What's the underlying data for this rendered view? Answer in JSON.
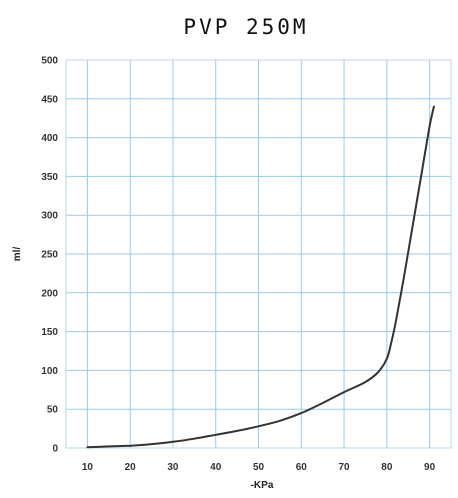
{
  "chart_data": {
    "type": "line",
    "title": "PVP 250M",
    "xlabel": "-KPa",
    "ylabel": "ml/",
    "xlim": [
      5,
      95
    ],
    "ylim": [
      0,
      500
    ],
    "x_ticks": [
      10,
      20,
      30,
      40,
      50,
      60,
      70,
      80,
      90
    ],
    "y_ticks": [
      0,
      50,
      100,
      150,
      200,
      250,
      300,
      350,
      400,
      450,
      500
    ],
    "grid": true,
    "colors": {
      "line": "#333333",
      "grid": "#9ec9e6",
      "frame": "#b9d6ea"
    },
    "series": [
      {
        "name": "",
        "x": [
          10,
          15,
          20,
          25,
          30,
          35,
          40,
          45,
          50,
          55,
          60,
          65,
          70,
          75,
          78,
          80,
          81,
          82,
          84,
          86,
          88,
          90,
          91
        ],
        "y": [
          1,
          2,
          3,
          5,
          8,
          12,
          17,
          22,
          28,
          35,
          45,
          58,
          72,
          85,
          98,
          115,
          135,
          160,
          220,
          285,
          350,
          415,
          440
        ]
      }
    ]
  }
}
